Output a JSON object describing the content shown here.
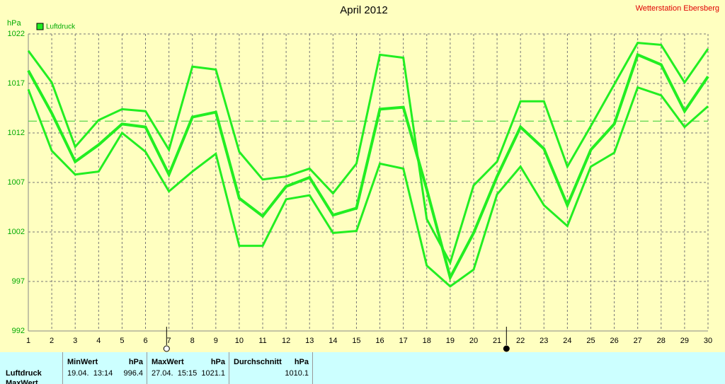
{
  "chart_data": {
    "type": "line",
    "title": "April 2012",
    "station": "Wetterstation Ebersberg",
    "y_unit": "hPa",
    "x": [
      1,
      2,
      3,
      4,
      5,
      6,
      7,
      8,
      9,
      10,
      11,
      12,
      13,
      14,
      15,
      16,
      17,
      18,
      19,
      20,
      21,
      22,
      23,
      24,
      25,
      26,
      27,
      28,
      29,
      30
    ],
    "xlim": [
      1,
      30
    ],
    "xticks": [
      1,
      2,
      3,
      4,
      5,
      6,
      7,
      8,
      9,
      10,
      11,
      12,
      13,
      14,
      15,
      16,
      17,
      18,
      19,
      20,
      21,
      22,
      23,
      24,
      25,
      26,
      27,
      28,
      29,
      30
    ],
    "ylim": [
      992,
      1022
    ],
    "yticks": [
      992,
      997,
      1002,
      1007,
      1012,
      1017,
      1022
    ],
    "grid": true,
    "reference_line": 1013.2,
    "moon_phases": [
      {
        "x": 6.9,
        "type": "full"
      },
      {
        "x": 21.4,
        "type": "new"
      }
    ],
    "series": [
      {
        "color": "#22ee22",
        "width": 3,
        "values": [
          1020.3,
          1017.1,
          1010.6,
          1013.3,
          1014.4,
          1014.2,
          1010.3,
          1018.7,
          1018.4,
          1010.1,
          1007.3,
          1007.6,
          1008.4,
          1005.9,
          1008.9,
          1019.9,
          1019.6,
          1003.3,
          998.9,
          1006.7,
          1009.1,
          1015.2,
          1015.2,
          1008.6,
          1012.7,
          1016.9,
          1021.1,
          1020.9,
          1017.1,
          1020.5
        ]
      },
      {
        "name": "Luftdruck",
        "color": "#22ee22",
        "width": 4,
        "values": [
          1018.3,
          1014.0,
          1009.1,
          1010.8,
          1012.9,
          1012.6,
          1007.8,
          1013.6,
          1014.1,
          1005.4,
          1003.6,
          1006.6,
          1007.5,
          1003.7,
          1004.4,
          1014.4,
          1014.6,
          1006.3,
          997.4,
          1001.9,
          1007.6,
          1012.6,
          1010.4,
          1004.7,
          1010.3,
          1012.9,
          1019.9,
          1018.9,
          1014.2,
          1017.7
        ]
      },
      {
        "color": "#22ee22",
        "width": 3,
        "values": [
          1016.4,
          1010.2,
          1007.8,
          1008.1,
          1012.0,
          1010.1,
          1006.1,
          1008.1,
          1009.9,
          1000.6,
          1000.6,
          1005.3,
          1005.7,
          1001.9,
          1002.1,
          1008.9,
          1008.4,
          998.6,
          996.5,
          998.2,
          1005.8,
          1008.6,
          1004.7,
          1002.6,
          1008.6,
          1010.0,
          1016.6,
          1015.8,
          1012.6,
          1014.7
        ]
      }
    ]
  },
  "table": {
    "row_labels": [
      "Luftdruck",
      "MaxWert"
    ],
    "columns": [
      {
        "header": "MinWert",
        "unit": "hPa",
        "time": "19.04.  13:14",
        "value": "996.4"
      },
      {
        "header": "MaxWert",
        "unit": "hPa",
        "time": "27.04.  15:15",
        "value": "1021.1"
      },
      {
        "header": "Durchschnitt",
        "unit": "hPa",
        "time": "",
        "value": "1010.1"
      }
    ]
  }
}
